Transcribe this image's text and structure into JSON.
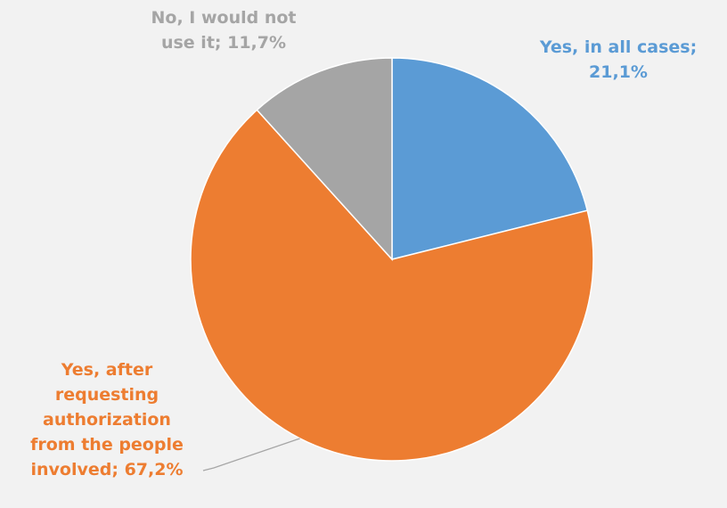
{
  "chart_data": {
    "type": "pie",
    "title": "",
    "slices": [
      {
        "value": 21.1,
        "label_lines": [
          "Yes, in all cases;",
          "21,1%"
        ],
        "color": "#5b9bd5"
      },
      {
        "value": 67.2,
        "label_lines": [
          "Yes, after",
          "requesting",
          "authorization",
          "from the people",
          "involved; 67,2%"
        ],
        "color": "#ed7d31"
      },
      {
        "value": 11.7,
        "label_lines": [
          "No, I would not",
          "use it; 11,7%"
        ],
        "color": "#a5a5a5"
      }
    ],
    "start_angle": "12 o'clock",
    "direction": "clockwise",
    "legend": "none"
  },
  "colors": {
    "background": "#f2f2f2",
    "slice_border": "#ffffff",
    "leader_line": "#a6a6a6"
  }
}
